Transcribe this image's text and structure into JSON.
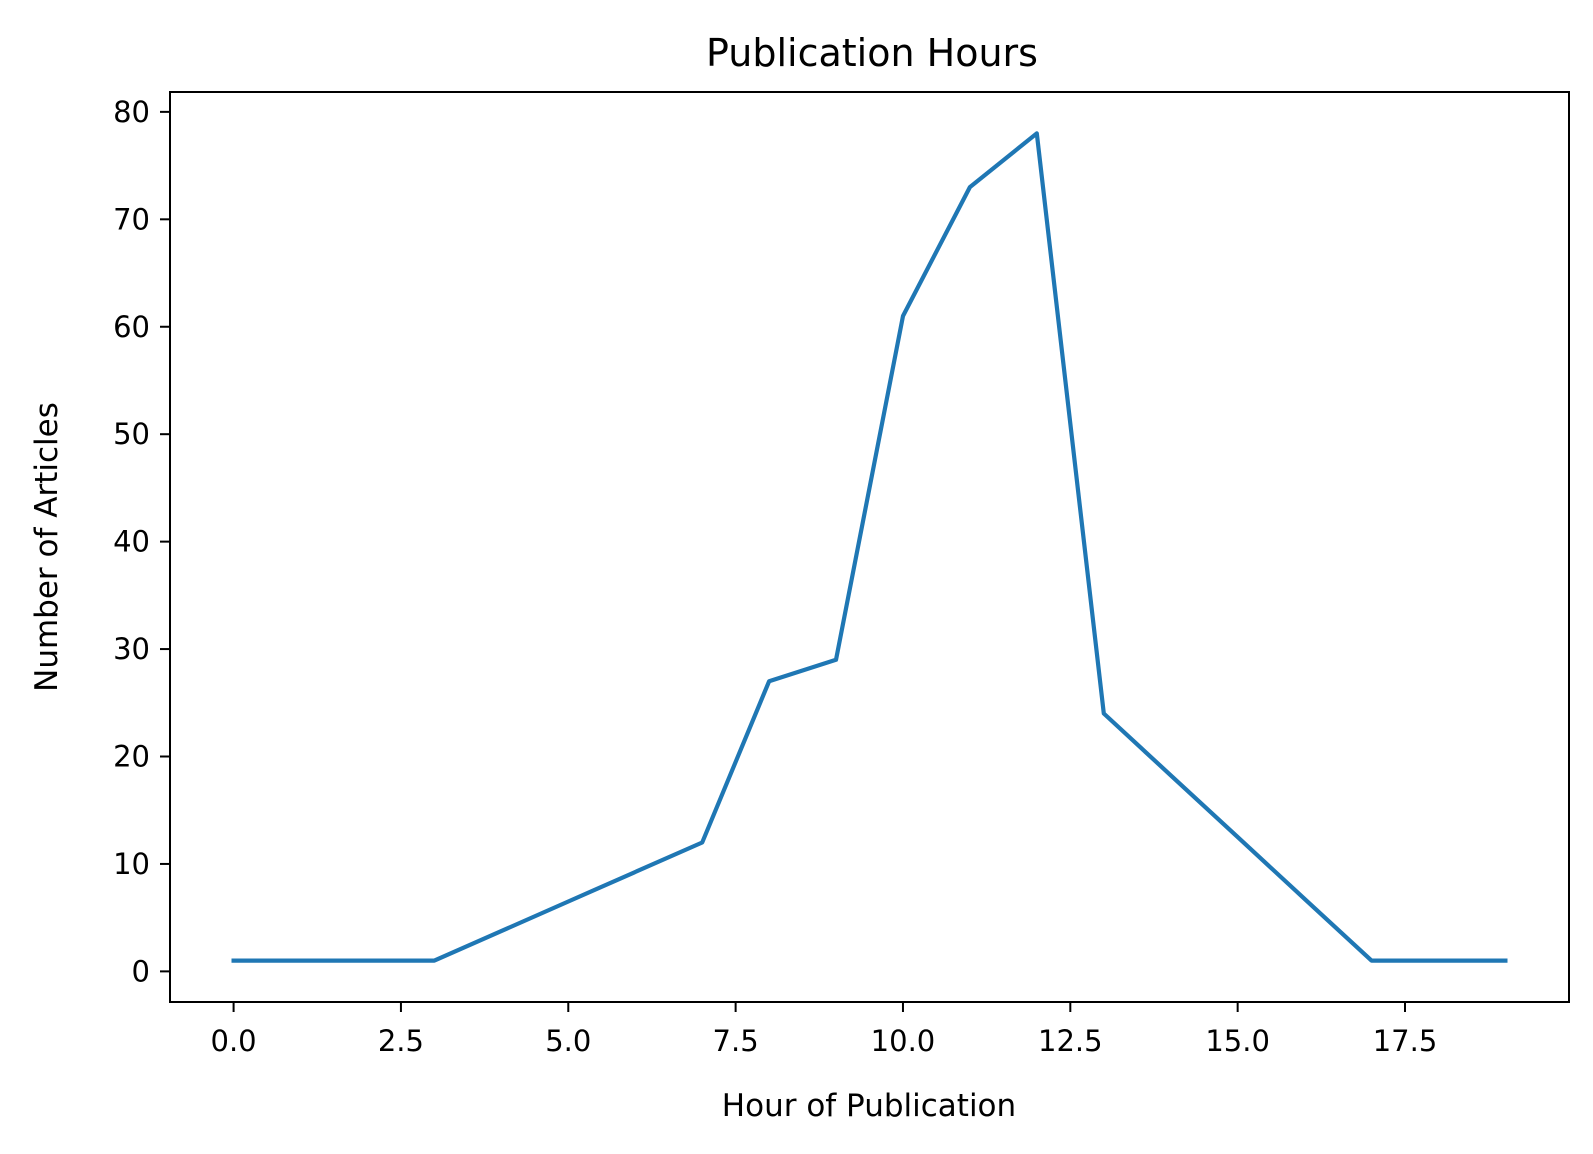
{
  "chart_data": {
    "type": "line",
    "title": "Publication Hours",
    "xlabel": "Hour of Publication",
    "ylabel": "Number of Articles",
    "x": [
      0,
      1,
      2,
      3,
      4,
      5,
      6,
      7,
      8,
      9,
      10,
      11,
      12,
      13,
      14,
      15,
      16,
      17,
      18,
      19
    ],
    "series": [
      {
        "values": [
          1,
          1,
          1,
          1,
          3.75,
          6.5,
          9.25,
          12,
          27,
          29,
          61,
          73,
          78,
          24,
          18.25,
          12.5,
          6.75,
          1,
          1,
          1
        ],
        "color": "#1f77b4"
      }
    ],
    "xlim": [
      -0.95,
      19.95
    ],
    "ylim": [
      -2.85,
      81.85
    ],
    "xticks": [
      0.0,
      2.5,
      5.0,
      7.5,
      10.0,
      12.5,
      15.0,
      17.5
    ],
    "xtick_labels": [
      "0.0",
      "2.5",
      "5.0",
      "7.5",
      "10.0",
      "12.5",
      "15.0",
      "17.5"
    ],
    "yticks": [
      0,
      10,
      20,
      30,
      40,
      50,
      60,
      70,
      80
    ],
    "ytick_labels": [
      "0",
      "10",
      "20",
      "30",
      "40",
      "50",
      "60",
      "70",
      "80"
    ],
    "grid": false,
    "legend": "none"
  }
}
